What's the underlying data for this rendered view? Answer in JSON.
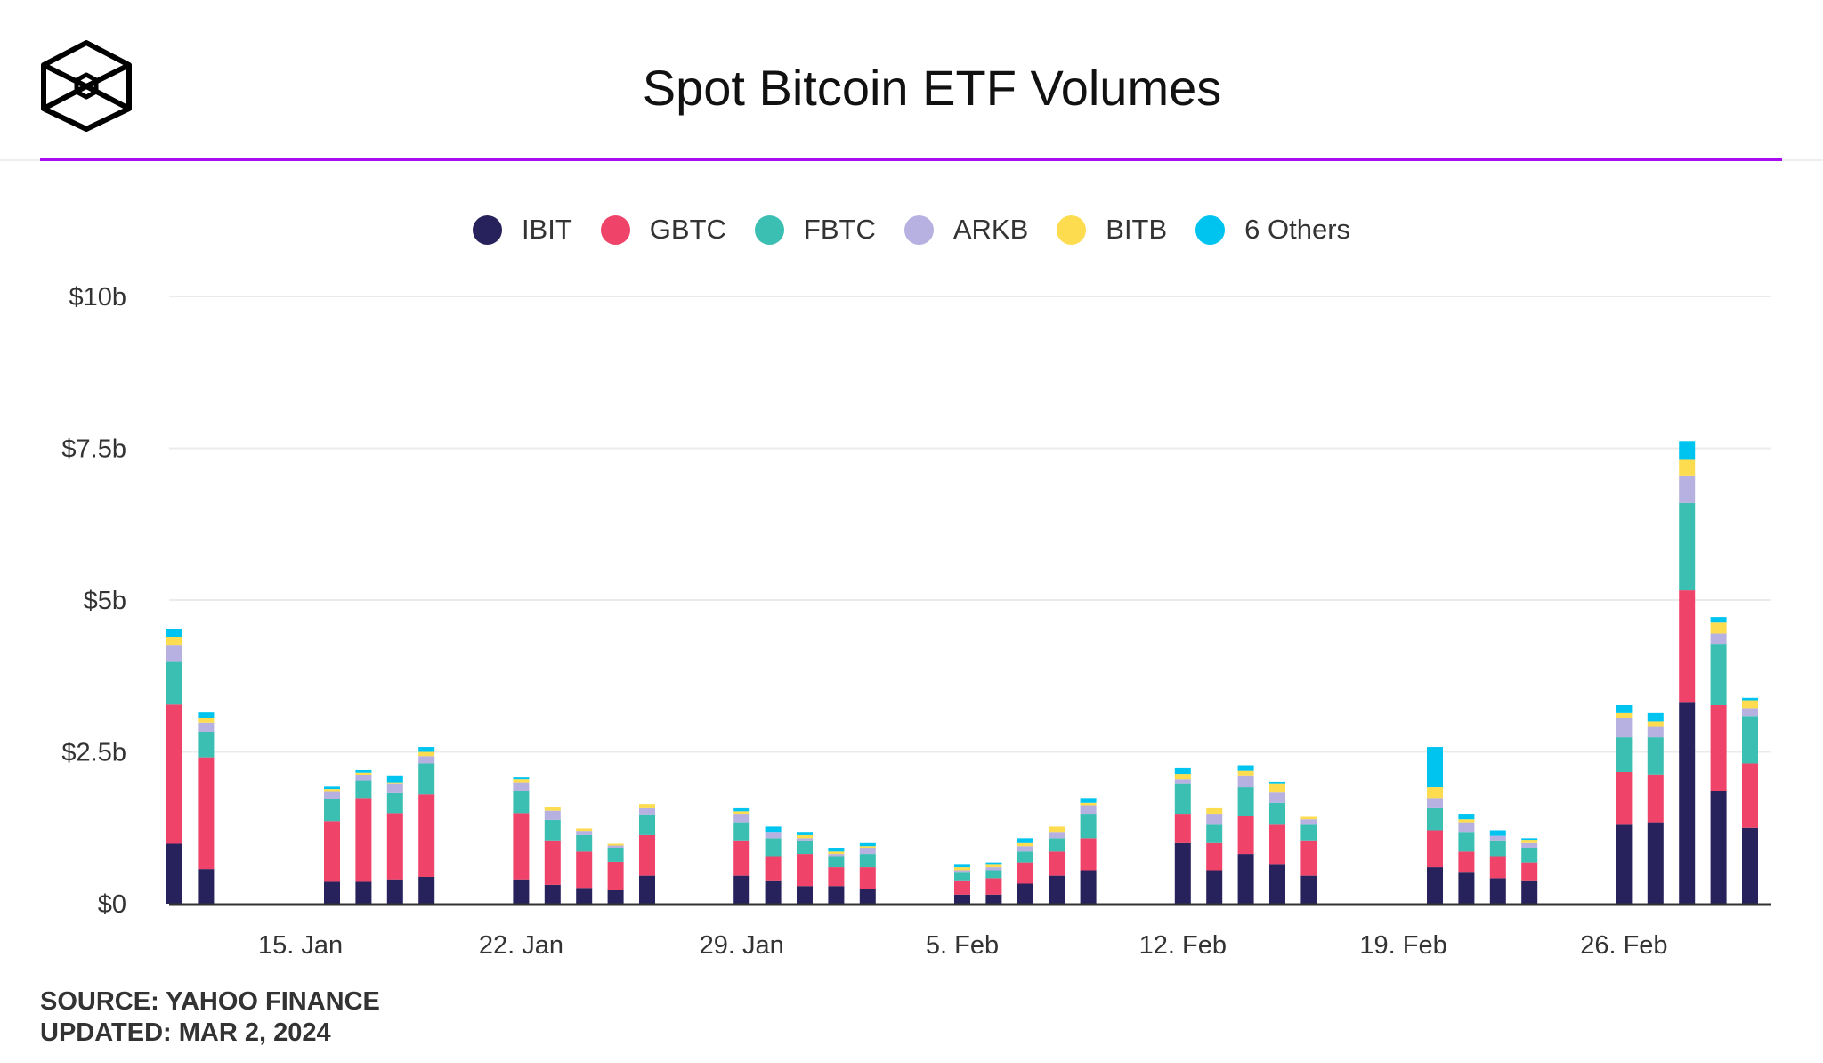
{
  "title": "Spot Bitcoin ETF Volumes",
  "source": "SOURCE: YAHOO FINANCE",
  "updated": "UPDATED: MAR 2, 2024",
  "accent_color": "#A80DF2",
  "logo": "cube-logo",
  "chart_data": {
    "type": "bar",
    "stacked": true,
    "title": "Spot Bitcoin ETF Volumes",
    "xlabel": "",
    "ylabel": "",
    "ylim": [
      0,
      10
    ],
    "y_unit": "$b",
    "y_ticks": [
      0,
      2.5,
      5,
      7.5,
      10
    ],
    "y_tick_labels": [
      "$0",
      "$2.5b",
      "$5b",
      "$7.5b",
      "$10b"
    ],
    "x_ticks": [
      "2024-01-15",
      "2024-01-22",
      "2024-01-29",
      "2024-02-05",
      "2024-02-12",
      "2024-02-19",
      "2024-02-26"
    ],
    "x_tick_labels": [
      "15. Jan",
      "22. Jan",
      "29. Jan",
      "5. Feb",
      "12. Feb",
      "19. Feb",
      "26. Feb"
    ],
    "grid": true,
    "legend_position": "top",
    "x": [
      "2024-01-11",
      "2024-01-12",
      "2024-01-16",
      "2024-01-17",
      "2024-01-18",
      "2024-01-19",
      "2024-01-22",
      "2024-01-23",
      "2024-01-24",
      "2024-01-25",
      "2024-01-26",
      "2024-01-29",
      "2024-01-30",
      "2024-01-31",
      "2024-02-01",
      "2024-02-02",
      "2024-02-05",
      "2024-02-06",
      "2024-02-07",
      "2024-02-08",
      "2024-02-09",
      "2024-02-12",
      "2024-02-13",
      "2024-02-14",
      "2024-02-15",
      "2024-02-16",
      "2024-02-20",
      "2024-02-21",
      "2024-02-22",
      "2024-02-23",
      "2024-02-26",
      "2024-02-27",
      "2024-02-28",
      "2024-02-29",
      "2024-03-01"
    ],
    "series": [
      {
        "name": "IBIT",
        "color": "#27215C",
        "values": [
          0.99,
          0.57,
          0.36,
          0.36,
          0.4,
          0.44,
          0.4,
          0.31,
          0.26,
          0.22,
          0.46,
          0.46,
          0.37,
          0.29,
          0.29,
          0.24,
          0.15,
          0.15,
          0.33,
          0.46,
          0.55,
          1.0,
          0.55,
          0.82,
          0.64,
          0.46,
          0.6,
          0.51,
          0.42,
          0.37,
          1.3,
          1.34,
          3.31,
          1.86,
          1.25
        ]
      },
      {
        "name": "GBTC",
        "color": "#F0436A",
        "values": [
          2.29,
          1.84,
          1.0,
          1.38,
          1.09,
          1.36,
          1.09,
          0.72,
          0.6,
          0.47,
          0.67,
          0.57,
          0.4,
          0.53,
          0.31,
          0.36,
          0.22,
          0.27,
          0.35,
          0.4,
          0.53,
          0.48,
          0.45,
          0.62,
          0.66,
          0.57,
          0.61,
          0.35,
          0.35,
          0.31,
          0.87,
          0.79,
          1.85,
          1.41,
          1.06
        ]
      },
      {
        "name": "FBTC",
        "color": "#3BBFB2",
        "values": [
          0.7,
          0.42,
          0.36,
          0.29,
          0.33,
          0.51,
          0.36,
          0.35,
          0.27,
          0.23,
          0.34,
          0.31,
          0.31,
          0.21,
          0.17,
          0.22,
          0.14,
          0.13,
          0.18,
          0.22,
          0.4,
          0.49,
          0.3,
          0.48,
          0.36,
          0.27,
          0.36,
          0.31,
          0.26,
          0.23,
          0.57,
          0.61,
          1.44,
          1.01,
          0.78
        ]
      },
      {
        "name": "ARKB",
        "color": "#B6B1E0",
        "values": [
          0.27,
          0.15,
          0.12,
          0.09,
          0.15,
          0.12,
          0.15,
          0.15,
          0.07,
          0.04,
          0.1,
          0.14,
          0.09,
          0.05,
          0.05,
          0.09,
          0.04,
          0.05,
          0.09,
          0.09,
          0.14,
          0.08,
          0.18,
          0.18,
          0.17,
          0.09,
          0.17,
          0.17,
          0.09,
          0.09,
          0.31,
          0.17,
          0.44,
          0.17,
          0.13
        ]
      },
      {
        "name": "BITB",
        "color": "#FEDC50",
        "values": [
          0.14,
          0.08,
          0.05,
          0.04,
          0.03,
          0.07,
          0.05,
          0.06,
          0.04,
          0.03,
          0.07,
          0.04,
          0.0,
          0.05,
          0.04,
          0.04,
          0.05,
          0.04,
          0.05,
          0.1,
          0.04,
          0.09,
          0.09,
          0.09,
          0.14,
          0.04,
          0.18,
          0.05,
          0.0,
          0.04,
          0.09,
          0.09,
          0.27,
          0.18,
          0.13
        ]
      },
      {
        "name": "6 Others",
        "color": "#00C4F0",
        "values": [
          0.13,
          0.09,
          0.04,
          0.04,
          0.1,
          0.08,
          0.03,
          0.0,
          0.0,
          0.0,
          0.0,
          0.05,
          0.1,
          0.04,
          0.05,
          0.05,
          0.04,
          0.04,
          0.08,
          0.0,
          0.08,
          0.09,
          0.0,
          0.09,
          0.04,
          0.0,
          0.66,
          0.09,
          0.09,
          0.04,
          0.13,
          0.14,
          0.31,
          0.09,
          0.04
        ]
      }
    ]
  }
}
